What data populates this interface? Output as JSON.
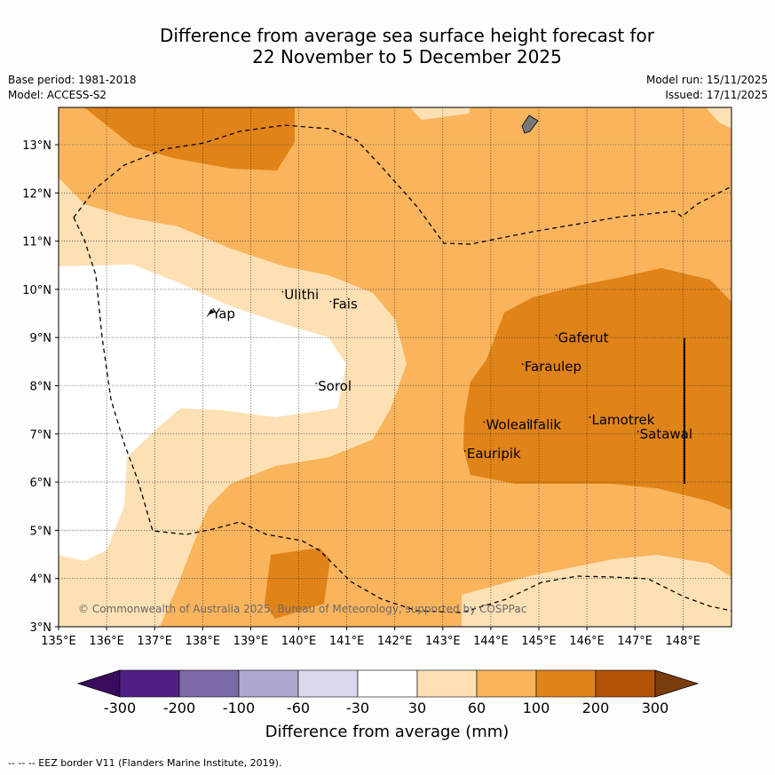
{
  "title_line1": "Difference from average sea surface height forecast for",
  "title_line2": "22 November to 5 December 2025",
  "meta": {
    "base_period": "Base period: 1981-2018",
    "model": "Model: ACCESS-S2",
    "model_run": "Model run: 15/11/2025",
    "issued": "Issued: 17/11/2025"
  },
  "map": {
    "lon_labels": [
      "135°E",
      "136°E",
      "137°E",
      "138°E",
      "139°E",
      "140°E",
      "141°E",
      "142°E",
      "143°E",
      "144°E",
      "145°E",
      "146°E",
      "147°E",
      "148°E"
    ],
    "lat_labels": [
      "3°N",
      "4°N",
      "5°N",
      "6°N",
      "7°N",
      "8°N",
      "9°N",
      "10°N",
      "11°N",
      "12°N",
      "13°N"
    ],
    "places": [
      {
        "name": "Yap",
        "lon": 138.2,
        "lat": 9.4
      },
      {
        "name": "Ulithi",
        "lon": 139.7,
        "lat": 9.8
      },
      {
        "name": "Fais",
        "lon": 140.7,
        "lat": 9.6
      },
      {
        "name": "Sorol",
        "lon": 140.4,
        "lat": 7.9
      },
      {
        "name": "Gaferut",
        "lon": 145.4,
        "lat": 8.9
      },
      {
        "name": "Faraulep",
        "lon": 144.7,
        "lat": 8.3
      },
      {
        "name": "Woleai",
        "lon": 143.9,
        "lat": 7.1
      },
      {
        "name": "Ifalik",
        "lon": 144.8,
        "lat": 7.1
      },
      {
        "name": "Lamotrek",
        "lon": 146.1,
        "lat": 7.2
      },
      {
        "name": "Satawal",
        "lon": 147.1,
        "lat": 6.9
      },
      {
        "name": "Eauripik",
        "lon": 143.5,
        "lat": 6.5
      }
    ],
    "copyright": "© Commonwealth of Australia 2025, Bureau of Meteorology, supported by COSPPac"
  },
  "colorbar": {
    "labels": [
      "-300",
      "-200",
      "-100",
      "-60",
      "-30",
      "30",
      "60",
      "100",
      "200",
      "300"
    ],
    "colors": [
      "#3a0b5c",
      "#4f1f83",
      "#7d6aa8",
      "#aea7d0",
      "#d9d8ec",
      "#ffffff",
      "#fde0b4",
      "#f9b45c",
      "#e08318",
      "#b25407",
      "#7a3c0c"
    ],
    "title": "Difference from average (mm)"
  },
  "footer": "-- -- -- EEZ border V11 (Flanders Marine Institute, 2019)."
}
